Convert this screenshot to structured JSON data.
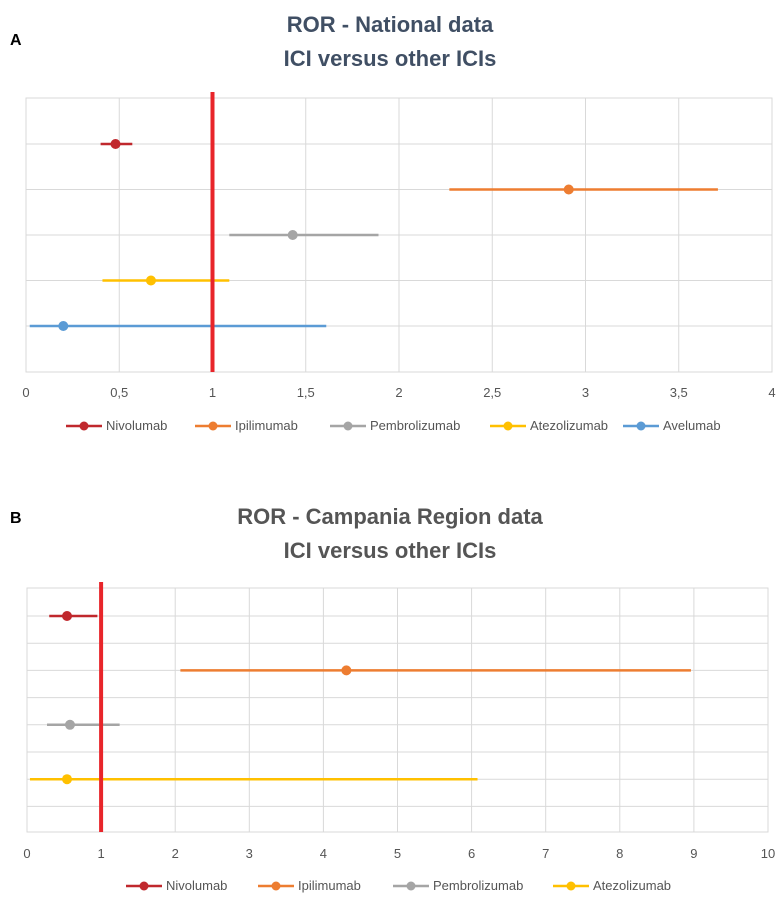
{
  "chart_data": [
    {
      "panel": "A",
      "type": "scatter",
      "title": "ROR - National data",
      "subtitle": "ICI versus other ICIs",
      "xlim": [
        0,
        4
      ],
      "x_ticks": [
        "0",
        "0,5",
        "1",
        "1,5",
        "2",
        "2,5",
        "3",
        "3,5",
        "4"
      ],
      "x_tick_values": [
        0,
        0.5,
        1,
        1.5,
        2,
        2.5,
        3,
        3.5,
        4
      ],
      "reference_line": 1,
      "reference_color": "#e8252a",
      "grid": true,
      "legend_position": "bottom",
      "series": [
        {
          "name": "Nivolumab",
          "color": "#c0282d",
          "value": 0.48,
          "low": 0.4,
          "high": 0.57
        },
        {
          "name": "Ipilimumab",
          "color": "#ed7d31",
          "value": 2.91,
          "low": 2.27,
          "high": 3.71
        },
        {
          "name": "Pembrolizumab",
          "color": "#a5a5a5",
          "value": 1.43,
          "low": 1.09,
          "high": 1.89
        },
        {
          "name": "Atezolizumab",
          "color": "#ffc000",
          "value": 0.67,
          "low": 0.41,
          "high": 1.09
        },
        {
          "name": "Avelumab",
          "color": "#5b9bd5",
          "value": 0.2,
          "low": 0.02,
          "high": 1.61
        }
      ]
    },
    {
      "panel": "B",
      "type": "scatter",
      "title": "ROR - Campania Region data",
      "subtitle": "ICI versus other ICIs",
      "xlim": [
        0,
        10
      ],
      "x_ticks": [
        "0",
        "1",
        "2",
        "3",
        "4",
        "5",
        "6",
        "7",
        "8",
        "9",
        "10"
      ],
      "x_tick_values": [
        0,
        1,
        2,
        3,
        4,
        5,
        6,
        7,
        8,
        9,
        10
      ],
      "reference_line": 1,
      "reference_color": "#e8252a",
      "grid": true,
      "legend_position": "bottom",
      "series": [
        {
          "name": "Nivolumab",
          "color": "#c0282d",
          "value": 0.54,
          "low": 0.3,
          "high": 0.95
        },
        {
          "name": "Ipilimumab",
          "color": "#ed7d31",
          "value": 4.31,
          "low": 2.07,
          "high": 8.96
        },
        {
          "name": "Pembrolizumab",
          "color": "#a5a5a5",
          "value": 0.58,
          "low": 0.27,
          "high": 1.25
        },
        {
          "name": "Atezolizumab",
          "color": "#ffc000",
          "value": 0.54,
          "low": 0.04,
          "high": 6.08
        }
      ]
    }
  ]
}
